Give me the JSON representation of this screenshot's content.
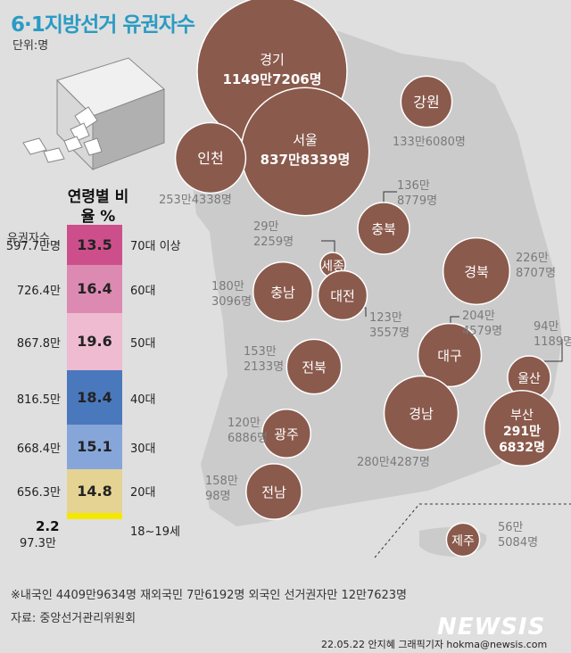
{
  "title": "6·1지방선거 유권자수",
  "unit": "단위:명",
  "colors": {
    "circle": "#8a5a4c",
    "title": "#2a9bc4",
    "land": "#cbcbcb"
  },
  "chart_data": [
    {
      "type": "bubble-map",
      "regions": [
        {
          "name": "경기",
          "value_label": "1149만7206명",
          "value": 11497206
        },
        {
          "name": "서울",
          "value_label": "837만8339명",
          "value": 8378339
        },
        {
          "name": "인천",
          "value_label": "253만4338명",
          "value": 2534338
        },
        {
          "name": "강원",
          "value_label": "133만6080명",
          "value": 1336080
        },
        {
          "name": "충북",
          "value_label": "136만 8779명",
          "value": 1368779
        },
        {
          "name": "세종",
          "value_label": "29만 2259명",
          "value": 292259
        },
        {
          "name": "충남",
          "value_label": "180만 3096명",
          "value": 1803096
        },
        {
          "name": "대전",
          "value_label": "123만 3557명",
          "value": 1233557
        },
        {
          "name": "경북",
          "value_label": "226만 8707명",
          "value": 2268707
        },
        {
          "name": "전북",
          "value_label": "153만 2133명",
          "value": 1532133
        },
        {
          "name": "대구",
          "value_label": "204만 4579명",
          "value": 2044579
        },
        {
          "name": "울산",
          "value_label": "94만 1189명",
          "value": 941189
        },
        {
          "name": "광주",
          "value_label": "120만 6886명",
          "value": 1206886
        },
        {
          "name": "경남",
          "value_label": "280만4287명",
          "value": 2804287
        },
        {
          "name": "부산",
          "value_label": "291만 6832명",
          "value": 2916832
        },
        {
          "name": "전남",
          "value_label": "158만 98명",
          "value": 1580098
        },
        {
          "name": "제주",
          "value_label": "56만 5084명",
          "value": 565084
        }
      ]
    },
    {
      "type": "bar",
      "title": "연령별 비율 %",
      "count_header": "유권자수",
      "groups": [
        {
          "age": "70대 이상",
          "pct": 13.5,
          "pct_label": "13.5",
          "count": "597.7만명",
          "color": "#cc4f8b"
        },
        {
          "age": "60대",
          "pct": 16.4,
          "pct_label": "16.4",
          "count": "726.4만",
          "color": "#dd8ab3"
        },
        {
          "age": "50대",
          "pct": 19.6,
          "pct_label": "19.6",
          "count": "867.8만",
          "color": "#eebbd1"
        },
        {
          "age": "40대",
          "pct": 18.4,
          "pct_label": "18.4",
          "count": "816.5만",
          "color": "#4a78bd"
        },
        {
          "age": "30대",
          "pct": 15.1,
          "pct_label": "15.1",
          "count": "668.4만",
          "color": "#86a6d9"
        },
        {
          "age": "20대",
          "pct": 14.8,
          "pct_label": "14.8",
          "count": "656.3만",
          "color": "#e5d394"
        },
        {
          "age": "18~19세",
          "pct": 2.2,
          "pct_label": "2.2",
          "count": "97.3만",
          "color": "#f5e800"
        }
      ]
    }
  ],
  "footnote": "※내국인 4409만9634명 재외국민 7만6192명 외국인 선거권자만 12만7623명",
  "source": "자료: 중앙선거관리위원회",
  "logo": "NEWSIS",
  "credit": "22.05.22 안지혜 그래픽기자 hokma@newsis.com"
}
